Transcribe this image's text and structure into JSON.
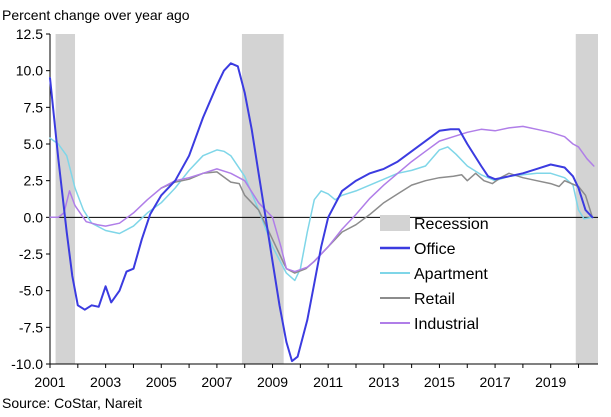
{
  "chart_data": {
    "type": "line",
    "title": "Percent change over year ago",
    "source": "Source: CoStar, Nareit",
    "xlim": [
      2001.0,
      2020.7
    ],
    "ylim": [
      -10.0,
      12.5
    ],
    "y_ticks": [
      12.5,
      10.0,
      7.5,
      5.0,
      2.5,
      0.0,
      -2.5,
      -5.0,
      -7.5,
      -10.0
    ],
    "y_tick_labels": [
      "12.5",
      "10.0",
      "7.5",
      "5.0",
      "2.5",
      "0.0",
      "-2.5",
      "-5.0",
      "-7.5",
      "-10.0"
    ],
    "x_ticks": [
      2001,
      2003,
      2005,
      2007,
      2009,
      2011,
      2013,
      2015,
      2017,
      2019
    ],
    "x_tick_labels": [
      "2001",
      "2003",
      "2005",
      "2007",
      "2009",
      "2011",
      "2013",
      "2015",
      "2017",
      "2019"
    ],
    "recessions": [
      {
        "start": 2001.2,
        "end": 2001.9
      },
      {
        "start": 2007.9,
        "end": 2009.4
      },
      {
        "start": 2019.9,
        "end": 2020.7
      }
    ],
    "legend": {
      "position": "lower-right",
      "entries": [
        "Recession",
        "Office",
        "Apartment",
        "Retail",
        "Industrial"
      ]
    },
    "series": [
      {
        "name": "Office",
        "color": "#3b3be0",
        "width": 2,
        "points": [
          [
            2001.0,
            9.5
          ],
          [
            2001.3,
            4.0
          ],
          [
            2001.6,
            -1.0
          ],
          [
            2001.8,
            -4.0
          ],
          [
            2002.0,
            -6.0
          ],
          [
            2002.25,
            -6.3
          ],
          [
            2002.5,
            -6.0
          ],
          [
            2002.75,
            -6.1
          ],
          [
            2003.0,
            -4.7
          ],
          [
            2003.2,
            -5.8
          ],
          [
            2003.5,
            -5.0
          ],
          [
            2003.75,
            -3.7
          ],
          [
            2004.0,
            -3.5
          ],
          [
            2004.3,
            -1.5
          ],
          [
            2004.6,
            0.2
          ],
          [
            2005.0,
            1.5
          ],
          [
            2005.5,
            2.5
          ],
          [
            2006.0,
            4.2
          ],
          [
            2006.5,
            6.8
          ],
          [
            2007.0,
            9.0
          ],
          [
            2007.25,
            10.0
          ],
          [
            2007.5,
            10.5
          ],
          [
            2007.75,
            10.3
          ],
          [
            2008.0,
            8.5
          ],
          [
            2008.25,
            6.0
          ],
          [
            2008.5,
            3.0
          ],
          [
            2008.75,
            0.0
          ],
          [
            2009.0,
            -3.0
          ],
          [
            2009.25,
            -6.0
          ],
          [
            2009.5,
            -8.5
          ],
          [
            2009.7,
            -9.8
          ],
          [
            2009.9,
            -9.5
          ],
          [
            2010.25,
            -7.0
          ],
          [
            2010.5,
            -4.5
          ],
          [
            2010.75,
            -2.0
          ],
          [
            2011.0,
            0.0
          ],
          [
            2011.5,
            1.8
          ],
          [
            2012.0,
            2.5
          ],
          [
            2012.5,
            3.0
          ],
          [
            2013.0,
            3.3
          ],
          [
            2013.5,
            3.8
          ],
          [
            2014.0,
            4.5
          ],
          [
            2014.5,
            5.2
          ],
          [
            2015.0,
            5.9
          ],
          [
            2015.4,
            6.0
          ],
          [
            2015.7,
            6.0
          ],
          [
            2016.0,
            5.0
          ],
          [
            2016.5,
            3.5
          ],
          [
            2016.75,
            2.8
          ],
          [
            2017.0,
            2.6
          ],
          [
            2017.5,
            2.8
          ],
          [
            2018.0,
            3.0
          ],
          [
            2018.5,
            3.3
          ],
          [
            2019.0,
            3.6
          ],
          [
            2019.5,
            3.4
          ],
          [
            2019.8,
            2.8
          ],
          [
            2020.0,
            2.0
          ],
          [
            2020.25,
            0.5
          ],
          [
            2020.5,
            0.0
          ]
        ]
      },
      {
        "name": "Apartment",
        "color": "#7fd6e8",
        "width": 1.5,
        "points": [
          [
            2001.0,
            5.4
          ],
          [
            2001.3,
            5.0
          ],
          [
            2001.6,
            4.2
          ],
          [
            2001.9,
            2.0
          ],
          [
            2002.2,
            0.5
          ],
          [
            2002.5,
            -0.4
          ],
          [
            2003.0,
            -0.9
          ],
          [
            2003.5,
            -1.1
          ],
          [
            2004.0,
            -0.6
          ],
          [
            2004.5,
            0.3
          ],
          [
            2005.0,
            1.0
          ],
          [
            2005.5,
            2.0
          ],
          [
            2006.0,
            3.2
          ],
          [
            2006.5,
            4.2
          ],
          [
            2007.0,
            4.6
          ],
          [
            2007.25,
            4.5
          ],
          [
            2007.5,
            4.2
          ],
          [
            2008.0,
            2.8
          ],
          [
            2008.5,
            0.5
          ],
          [
            2009.0,
            -2.0
          ],
          [
            2009.5,
            -3.8
          ],
          [
            2009.8,
            -4.3
          ],
          [
            2010.0,
            -3.5
          ],
          [
            2010.25,
            -1.0
          ],
          [
            2010.5,
            1.2
          ],
          [
            2010.75,
            1.8
          ],
          [
            2011.0,
            1.6
          ],
          [
            2011.25,
            1.2
          ],
          [
            2011.5,
            1.5
          ],
          [
            2012.0,
            1.8
          ],
          [
            2012.5,
            2.2
          ],
          [
            2013.0,
            2.6
          ],
          [
            2013.5,
            3.0
          ],
          [
            2014.0,
            3.2
          ],
          [
            2014.5,
            3.5
          ],
          [
            2015.0,
            4.6
          ],
          [
            2015.3,
            4.8
          ],
          [
            2015.6,
            4.3
          ],
          [
            2016.0,
            3.5
          ],
          [
            2016.5,
            2.9
          ],
          [
            2017.0,
            2.5
          ],
          [
            2017.5,
            2.8
          ],
          [
            2018.0,
            2.9
          ],
          [
            2018.5,
            3.0
          ],
          [
            2019.0,
            3.0
          ],
          [
            2019.5,
            2.7
          ],
          [
            2019.8,
            2.2
          ],
          [
            2020.0,
            0.5
          ],
          [
            2020.2,
            -0.1
          ],
          [
            2020.5,
            0.0
          ]
        ]
      },
      {
        "name": "Retail",
        "color": "#8c8c8c",
        "width": 1.5,
        "points": [
          [
            2005.0,
            2.0
          ],
          [
            2005.5,
            2.4
          ],
          [
            2006.0,
            2.6
          ],
          [
            2006.5,
            3.0
          ],
          [
            2007.0,
            3.1
          ],
          [
            2007.5,
            2.4
          ],
          [
            2007.8,
            2.3
          ],
          [
            2008.0,
            1.5
          ],
          [
            2008.5,
            0.5
          ],
          [
            2009.0,
            -1.5
          ],
          [
            2009.5,
            -3.5
          ],
          [
            2009.8,
            -3.8
          ],
          [
            2010.2,
            -3.5
          ],
          [
            2010.5,
            -3.0
          ],
          [
            2011.0,
            -2.0
          ],
          [
            2011.5,
            -1.0
          ],
          [
            2012.0,
            -0.5
          ],
          [
            2012.5,
            0.2
          ],
          [
            2013.0,
            1.0
          ],
          [
            2013.5,
            1.6
          ],
          [
            2014.0,
            2.2
          ],
          [
            2014.5,
            2.5
          ],
          [
            2015.0,
            2.7
          ],
          [
            2015.5,
            2.8
          ],
          [
            2015.8,
            2.9
          ],
          [
            2016.0,
            2.5
          ],
          [
            2016.3,
            3.0
          ],
          [
            2016.6,
            2.5
          ],
          [
            2016.9,
            2.3
          ],
          [
            2017.2,
            2.7
          ],
          [
            2017.5,
            3.0
          ],
          [
            2018.0,
            2.7
          ],
          [
            2018.5,
            2.5
          ],
          [
            2019.0,
            2.3
          ],
          [
            2019.3,
            2.1
          ],
          [
            2019.5,
            2.5
          ],
          [
            2020.0,
            2.1
          ],
          [
            2020.25,
            1.5
          ],
          [
            2020.5,
            0.0
          ]
        ]
      },
      {
        "name": "Industrial",
        "color": "#b07ee8",
        "width": 1.5,
        "points": [
          [
            2001.0,
            0.0
          ],
          [
            2001.3,
            0.0
          ],
          [
            2001.5,
            0.3
          ],
          [
            2001.7,
            1.8
          ],
          [
            2001.9,
            0.8
          ],
          [
            2002.3,
            -0.3
          ],
          [
            2002.7,
            -0.5
          ],
          [
            2003.0,
            -0.6
          ],
          [
            2003.5,
            -0.4
          ],
          [
            2004.0,
            0.3
          ],
          [
            2004.5,
            1.2
          ],
          [
            2005.0,
            2.0
          ],
          [
            2005.5,
            2.5
          ],
          [
            2006.0,
            2.7
          ],
          [
            2006.5,
            3.0
          ],
          [
            2007.0,
            3.3
          ],
          [
            2007.5,
            3.0
          ],
          [
            2008.0,
            2.5
          ],
          [
            2008.5,
            1.0
          ],
          [
            2009.0,
            0.0
          ],
          [
            2009.3,
            -2.0
          ],
          [
            2009.5,
            -3.5
          ],
          [
            2009.8,
            -3.7
          ],
          [
            2010.25,
            -3.4
          ],
          [
            2010.5,
            -3.0
          ],
          [
            2011.0,
            -2.0
          ],
          [
            2011.5,
            -0.8
          ],
          [
            2012.0,
            0.2
          ],
          [
            2012.5,
            1.3
          ],
          [
            2013.0,
            2.2
          ],
          [
            2013.5,
            3.0
          ],
          [
            2014.0,
            3.8
          ],
          [
            2014.5,
            4.5
          ],
          [
            2015.0,
            5.2
          ],
          [
            2015.5,
            5.5
          ],
          [
            2016.0,
            5.8
          ],
          [
            2016.5,
            6.0
          ],
          [
            2017.0,
            5.9
          ],
          [
            2017.5,
            6.1
          ],
          [
            2018.0,
            6.2
          ],
          [
            2018.5,
            6.0
          ],
          [
            2019.0,
            5.8
          ],
          [
            2019.5,
            5.5
          ],
          [
            2019.8,
            5.0
          ],
          [
            2020.0,
            4.8
          ],
          [
            2020.3,
            4.0
          ],
          [
            2020.55,
            3.5
          ]
        ]
      }
    ]
  }
}
